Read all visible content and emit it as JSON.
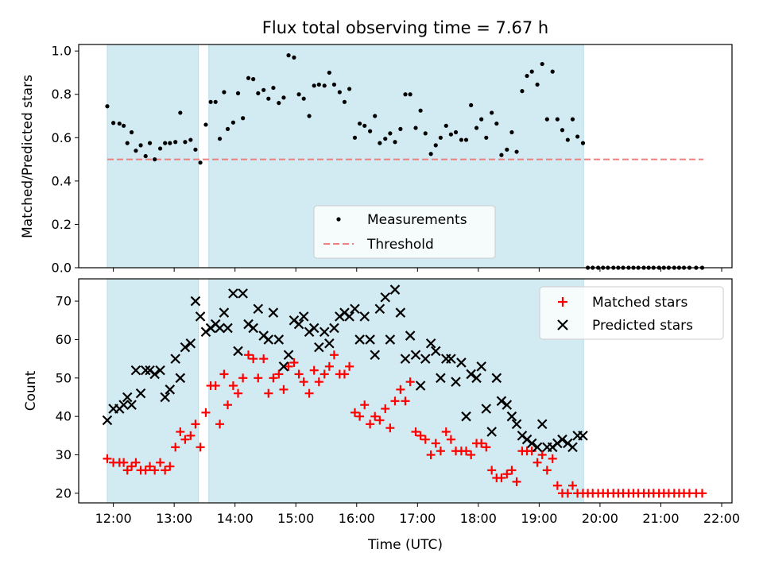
{
  "chart_data": [
    {
      "type": "scatter",
      "title": "Flux total observing time = 7.67 h",
      "xlabel": "",
      "ylabel": "Matched/Predicted stars",
      "xlim": [
        11.43,
        22.17
      ],
      "ylim": [
        0.0,
        1.03
      ],
      "yticks": [
        0.0,
        0.2,
        0.4,
        0.6,
        0.8,
        1.0
      ],
      "ytick_labels": [
        "0.0",
        "0.2",
        "0.4",
        "0.6",
        "0.8",
        "1.0"
      ],
      "shaded_intervals": [
        [
          11.9,
          13.4
        ],
        [
          13.57,
          19.73
        ]
      ],
      "legend": {
        "position": "lower-center",
        "entries": [
          "Measurements",
          "Threshold"
        ]
      },
      "threshold": {
        "name": "Threshold",
        "y": 0.5,
        "x_range": [
          11.9,
          21.7
        ],
        "color": "#f08080"
      },
      "series": [
        {
          "name": "Measurements",
          "marker": "dot",
          "color": "#000000",
          "x": [
            11.9,
            12.0,
            12.1,
            12.17,
            12.23,
            12.3,
            12.37,
            12.45,
            12.53,
            12.6,
            12.68,
            12.77,
            12.85,
            12.93,
            13.02,
            13.1,
            13.18,
            13.27,
            13.35,
            13.43,
            13.52,
            13.6,
            13.68,
            13.75,
            13.82,
            13.88,
            13.97,
            14.05,
            14.13,
            14.22,
            14.3,
            14.38,
            14.47,
            14.55,
            14.63,
            14.72,
            14.8,
            14.88,
            14.97,
            15.05,
            15.13,
            15.22,
            15.3,
            15.38,
            15.47,
            15.55,
            15.63,
            15.72,
            15.8,
            15.88,
            15.97,
            16.05,
            16.13,
            16.22,
            16.3,
            16.38,
            16.47,
            16.55,
            16.63,
            16.72,
            16.8,
            16.88,
            16.97,
            17.05,
            17.13,
            17.22,
            17.3,
            17.38,
            17.47,
            17.55,
            17.63,
            17.72,
            17.8,
            17.88,
            17.97,
            18.05,
            18.13,
            18.22,
            18.3,
            18.38,
            18.47,
            18.55,
            18.63,
            18.72,
            18.8,
            18.88,
            18.97,
            19.05,
            19.13,
            19.22,
            19.3,
            19.38,
            19.47,
            19.55,
            19.63,
            19.72,
            19.8,
            19.88,
            19.97,
            20.05,
            20.13,
            20.22,
            20.3,
            20.38,
            20.47,
            20.55,
            20.63,
            20.72,
            20.8,
            20.88,
            20.97,
            21.05,
            21.13,
            21.22,
            21.3,
            21.38,
            21.47,
            21.58,
            21.68
          ],
          "y": [
            0.745,
            0.668,
            0.665,
            0.655,
            0.575,
            0.625,
            0.54,
            0.565,
            0.515,
            0.575,
            0.5,
            0.55,
            0.575,
            0.575,
            0.58,
            0.715,
            0.58,
            0.59,
            0.545,
            0.485,
            0.66,
            0.765,
            0.765,
            0.595,
            0.81,
            0.64,
            0.67,
            0.805,
            0.69,
            0.875,
            0.87,
            0.805,
            0.82,
            0.78,
            0.83,
            0.76,
            0.785,
            0.98,
            0.97,
            0.8,
            0.78,
            0.7,
            0.84,
            0.845,
            0.84,
            0.9,
            0.845,
            0.81,
            0.765,
            0.825,
            0.6,
            0.665,
            0.655,
            0.63,
            0.7,
            0.575,
            0.595,
            0.62,
            0.58,
            0.64,
            0.8,
            0.8,
            0.645,
            0.725,
            0.62,
            0.525,
            0.565,
            0.6,
            0.655,
            0.615,
            0.625,
            0.59,
            0.59,
            0.75,
            0.645,
            0.685,
            0.6,
            0.715,
            0.665,
            0.52,
            0.545,
            0.625,
            0.535,
            0.815,
            0.885,
            0.905,
            0.845,
            0.94,
            0.685,
            0.905,
            0.685,
            0.635,
            0.59,
            0.685,
            0.605,
            0.575,
            0,
            0,
            0,
            0,
            0,
            0,
            0,
            0,
            0,
            0,
            0,
            0,
            0,
            0,
            0,
            0,
            0,
            0,
            0,
            0,
            0,
            0,
            0
          ]
        }
      ]
    },
    {
      "type": "scatter",
      "title": "",
      "xlabel": "Time (UTC)",
      "ylabel": "Count",
      "xlim": [
        11.43,
        22.17
      ],
      "ylim": [
        17.5,
        75.8
      ],
      "yticks": [
        20,
        30,
        40,
        50,
        60,
        70
      ],
      "ytick_labels": [
        "20",
        "30",
        "40",
        "50",
        "60",
        "70"
      ],
      "xticks": [
        12,
        13,
        14,
        15,
        16,
        17,
        18,
        19,
        20,
        21,
        22
      ],
      "xtick_labels": [
        "12:00",
        "13:00",
        "14:00",
        "15:00",
        "16:00",
        "17:00",
        "18:00",
        "19:00",
        "20:00",
        "21:00",
        "22:00"
      ],
      "shaded_intervals": [
        [
          11.9,
          13.4
        ],
        [
          13.57,
          19.73
        ]
      ],
      "legend": {
        "position": "top-right",
        "entries": [
          "Matched stars",
          "Predicted stars"
        ]
      },
      "series": [
        {
          "name": "Matched stars",
          "marker": "plus",
          "color": "#ff0000",
          "x": [
            11.9,
            12.0,
            12.1,
            12.17,
            12.23,
            12.3,
            12.37,
            12.45,
            12.53,
            12.6,
            12.68,
            12.77,
            12.85,
            12.93,
            13.02,
            13.1,
            13.18,
            13.27,
            13.35,
            13.43,
            13.52,
            13.6,
            13.68,
            13.75,
            13.82,
            13.88,
            13.97,
            14.05,
            14.13,
            14.22,
            14.3,
            14.38,
            14.47,
            14.55,
            14.63,
            14.72,
            14.8,
            14.88,
            14.97,
            15.05,
            15.13,
            15.22,
            15.3,
            15.38,
            15.47,
            15.55,
            15.63,
            15.72,
            15.8,
            15.88,
            15.97,
            16.05,
            16.13,
            16.22,
            16.3,
            16.38,
            16.47,
            16.55,
            16.63,
            16.72,
            16.8,
            16.88,
            16.97,
            17.05,
            17.13,
            17.22,
            17.3,
            17.38,
            17.47,
            17.55,
            17.63,
            17.72,
            17.8,
            17.88,
            17.97,
            18.05,
            18.13,
            18.22,
            18.3,
            18.38,
            18.47,
            18.55,
            18.63,
            18.72,
            18.8,
            18.88,
            18.97,
            19.05,
            19.13,
            19.22,
            19.3,
            19.38,
            19.47,
            19.55,
            19.63,
            19.72,
            19.8,
            19.88,
            19.97,
            20.05,
            20.13,
            20.22,
            20.3,
            20.38,
            20.47,
            20.55,
            20.63,
            20.72,
            20.8,
            20.88,
            20.97,
            21.05,
            21.13,
            21.22,
            21.3,
            21.38,
            21.47,
            21.58,
            21.68
          ],
          "y": [
            29,
            28,
            28,
            28,
            26,
            27,
            28,
            26,
            26,
            27,
            26,
            28,
            26,
            27,
            32,
            36,
            34,
            35,
            38,
            32,
            41,
            48,
            48,
            38,
            51,
            43,
            48,
            46,
            50,
            56,
            55,
            50,
            55,
            46,
            50,
            51,
            47,
            53,
            54,
            51,
            49,
            46,
            52,
            49,
            51,
            53,
            56,
            51,
            51,
            53,
            41,
            40,
            43,
            38,
            40,
            39,
            42,
            37,
            44,
            47,
            44,
            49,
            36,
            35,
            34,
            30,
            33,
            31,
            36,
            34,
            31,
            31,
            31,
            30,
            33,
            33,
            32,
            26,
            24,
            24,
            25,
            26,
            23,
            31,
            31,
            31,
            28,
            30,
            26,
            29,
            22,
            20,
            20,
            22,
            20,
            20,
            20,
            20,
            20,
            20,
            20,
            20,
            20,
            20,
            20,
            20,
            20,
            20,
            20,
            20,
            20,
            20,
            20,
            20,
            20,
            20,
            20,
            20,
            20
          ]
        },
        {
          "name": "Predicted stars",
          "marker": "x",
          "color": "#000000",
          "x": [
            11.9,
            12.0,
            12.1,
            12.17,
            12.23,
            12.3,
            12.37,
            12.45,
            12.53,
            12.6,
            12.68,
            12.77,
            12.85,
            12.93,
            13.02,
            13.1,
            13.18,
            13.27,
            13.35,
            13.43,
            13.52,
            13.6,
            13.68,
            13.75,
            13.82,
            13.88,
            13.97,
            14.05,
            14.13,
            14.22,
            14.3,
            14.38,
            14.47,
            14.55,
            14.63,
            14.72,
            14.8,
            14.88,
            14.97,
            15.05,
            15.13,
            15.22,
            15.3,
            15.38,
            15.47,
            15.55,
            15.63,
            15.72,
            15.8,
            15.88,
            15.97,
            16.05,
            16.13,
            16.22,
            16.3,
            16.38,
            16.47,
            16.55,
            16.63,
            16.72,
            16.8,
            16.88,
            16.97,
            17.05,
            17.13,
            17.22,
            17.3,
            17.38,
            17.47,
            17.55,
            17.63,
            17.72,
            17.8,
            17.88,
            17.97,
            18.05,
            18.13,
            18.22,
            18.3,
            18.38,
            18.47,
            18.55,
            18.63,
            18.72,
            18.8,
            18.88,
            18.97,
            19.05,
            19.13,
            19.22,
            19.3,
            19.38,
            19.47,
            19.55,
            19.63,
            19.72
          ],
          "y": [
            39,
            42,
            42,
            43,
            45,
            43,
            52,
            46,
            52,
            52,
            51,
            52,
            45,
            47,
            55,
            50,
            58,
            59,
            70,
            66,
            62,
            63,
            64,
            63,
            67,
            63,
            72,
            57,
            72,
            64,
            63,
            68,
            61,
            60,
            67,
            60,
            53,
            56,
            65,
            64,
            66,
            62,
            63,
            58,
            62,
            59,
            63,
            66,
            67,
            66,
            68,
            60,
            66,
            60,
            56,
            68,
            71,
            60,
            73,
            67,
            55,
            61,
            56,
            48,
            55,
            59,
            57,
            50,
            55,
            55,
            49,
            54,
            40,
            51,
            50,
            53,
            42,
            36,
            50,
            44,
            43,
            40,
            38,
            35,
            34,
            33,
            32,
            38,
            32,
            32,
            33,
            34,
            33,
            32,
            35,
            35
          ]
        }
      ]
    }
  ]
}
